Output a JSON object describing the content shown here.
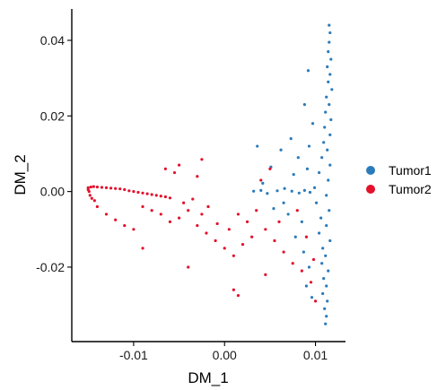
{
  "chart_data": {
    "type": "scatter",
    "title": "",
    "xlabel": "DM_1",
    "ylabel": "DM_2",
    "xlim": [
      -0.0168,
      0.0133
    ],
    "ylim": [
      -0.0397,
      0.0483
    ],
    "x_ticks": [
      {
        "value": -0.01,
        "label": "-0.01"
      },
      {
        "value": 0.0,
        "label": "0.00"
      },
      {
        "value": 0.01,
        "label": "0.01"
      }
    ],
    "y_ticks": [
      {
        "value": 0.04,
        "label": "0.04"
      },
      {
        "value": 0.02,
        "label": "0.02"
      },
      {
        "value": 0.0,
        "label": "0.00"
      },
      {
        "value": -0.02,
        "label": "-0.02"
      }
    ],
    "grid": false,
    "legend_position": "right",
    "series": [
      {
        "name": "Tumor1",
        "color": "#2b7bba",
        "points": [
          [
            0.0115,
            0.044
          ],
          [
            0.0116,
            0.042
          ],
          [
            0.0115,
            0.0395
          ],
          [
            0.0114,
            0.037
          ],
          [
            0.0117,
            0.035
          ],
          [
            0.0113,
            0.033
          ],
          [
            0.0116,
            0.031
          ],
          [
            0.0114,
            0.029
          ],
          [
            0.0118,
            0.027
          ],
          [
            0.0112,
            0.025
          ],
          [
            0.0115,
            0.023
          ],
          [
            0.0111,
            0.021
          ],
          [
            0.0117,
            0.019
          ],
          [
            0.011,
            0.017
          ],
          [
            0.0116,
            0.015
          ],
          [
            0.0109,
            0.013
          ],
          [
            0.0113,
            0.011
          ],
          [
            0.0107,
            0.009
          ],
          [
            0.0116,
            0.007
          ],
          [
            0.0104,
            0.005
          ],
          [
            0.0114,
            0.003
          ],
          [
            0.0099,
            0.001
          ],
          [
            0.0112,
            -0.001
          ],
          [
            0.0101,
            -0.003
          ],
          [
            0.0115,
            -0.005
          ],
          [
            0.0106,
            -0.007
          ],
          [
            0.0112,
            -0.009
          ],
          [
            0.0104,
            -0.011
          ],
          [
            0.0116,
            -0.013
          ],
          [
            0.0108,
            -0.015
          ],
          [
            0.0111,
            -0.017
          ],
          [
            0.0107,
            -0.019
          ],
          [
            0.0114,
            -0.021
          ],
          [
            0.0109,
            -0.023
          ],
          [
            0.0112,
            -0.025
          ],
          [
            0.0108,
            -0.027
          ],
          [
            0.0113,
            -0.029
          ],
          [
            0.011,
            -0.031
          ],
          [
            0.0112,
            -0.033
          ],
          [
            0.0111,
            -0.035
          ],
          [
            0.0092,
            0.032
          ],
          [
            0.0088,
            0.023
          ],
          [
            0.0097,
            0.018
          ],
          [
            0.0093,
            0.012
          ],
          [
            0.0081,
            0.009
          ],
          [
            0.0073,
            0.014
          ],
          [
            0.0062,
            0.011
          ],
          [
            0.0051,
            0.0065
          ],
          [
            0.0042,
            0.0022
          ],
          [
            0.0036,
            0.012
          ],
          [
            0.0058,
            0.0002
          ],
          [
            0.0066,
            0.0008
          ],
          [
            0.0074,
            0.0001
          ],
          [
            0.0082,
            -0.0004
          ],
          [
            0.0088,
            0.0003
          ],
          [
            0.0094,
            -0.0002
          ],
          [
            0.0047,
            -0.0005
          ],
          [
            0.004,
            0.0003
          ],
          [
            0.0032,
            0.0001
          ],
          [
            0.0054,
            -0.0045
          ],
          [
            0.007,
            -0.006
          ],
          [
            0.0078,
            -0.012
          ],
          [
            0.0087,
            -0.016
          ],
          [
            0.0093,
            -0.02
          ],
          [
            0.009,
            -0.025
          ],
          [
            0.0096,
            -0.028
          ],
          [
            0.0085,
            -0.008
          ],
          [
            0.0065,
            -0.003
          ],
          [
            0.0076,
            0.0045
          ],
          [
            0.0091,
            0.006
          ]
        ]
      },
      {
        "name": "Tumor2",
        "color": "#e3112c",
        "points": [
          [
            -0.015,
            0.001
          ],
          [
            -0.0149,
            0.0
          ],
          [
            -0.0148,
            -0.001
          ],
          [
            -0.0146,
            -0.0018
          ],
          [
            -0.0143,
            -0.0024
          ],
          [
            -0.015,
            0.0005
          ],
          [
            -0.0147,
            0.0012
          ],
          [
            -0.0144,
            0.0013
          ],
          [
            -0.014,
            0.0012
          ],
          [
            -0.0135,
            0.0011
          ],
          [
            -0.013,
            0.001
          ],
          [
            -0.0125,
            0.0009
          ],
          [
            -0.012,
            0.0008
          ],
          [
            -0.0115,
            0.0007
          ],
          [
            -0.011,
            0.0005
          ],
          [
            -0.0105,
            0.0002
          ],
          [
            -0.01,
            0.0
          ],
          [
            -0.0095,
            -0.0002
          ],
          [
            -0.009,
            -0.0004
          ],
          [
            -0.0085,
            -0.0006
          ],
          [
            -0.008,
            -0.0008
          ],
          [
            -0.0075,
            -0.001
          ],
          [
            -0.007,
            -0.0012
          ],
          [
            -0.0065,
            -0.0014
          ],
          [
            -0.006,
            -0.0017
          ],
          [
            -0.014,
            -0.004
          ],
          [
            -0.013,
            -0.006
          ],
          [
            -0.012,
            -0.0075
          ],
          [
            -0.011,
            -0.009
          ],
          [
            -0.01,
            -0.01
          ],
          [
            -0.009,
            -0.004
          ],
          [
            -0.008,
            -0.005
          ],
          [
            -0.007,
            -0.006
          ],
          [
            -0.006,
            -0.008
          ],
          [
            -0.005,
            -0.007
          ],
          [
            -0.004,
            -0.005
          ],
          [
            -0.003,
            -0.009
          ],
          [
            -0.002,
            -0.011
          ],
          [
            -0.001,
            -0.013
          ],
          [
            0.0,
            -0.015
          ],
          [
            0.001,
            -0.017
          ],
          [
            -0.0008,
            -0.0085
          ],
          [
            -0.0018,
            -0.004
          ],
          [
            -0.0025,
            -0.006
          ],
          [
            -0.0045,
            -0.003
          ],
          [
            -0.0055,
            0.005
          ],
          [
            -0.0065,
            0.006
          ],
          [
            -0.005,
            0.007
          ],
          [
            -0.0035,
            -0.002
          ],
          [
            -0.003,
            0.004
          ],
          [
            0.0015,
            -0.006
          ],
          [
            0.0025,
            -0.008
          ],
          [
            0.0035,
            -0.005
          ],
          [
            0.0045,
            -0.01
          ],
          [
            0.0055,
            -0.013
          ],
          [
            0.0065,
            -0.016
          ],
          [
            0.0075,
            -0.019
          ],
          [
            0.0085,
            -0.021
          ],
          [
            0.0095,
            -0.024
          ],
          [
            0.01,
            -0.029
          ],
          [
            0.004,
            0.003
          ],
          [
            0.005,
            0.006
          ],
          [
            0.003,
            -0.012
          ],
          [
            0.002,
            -0.014
          ],
          [
            0.006,
            -0.008
          ],
          [
            0.008,
            -0.005
          ],
          [
            0.009,
            -0.012
          ],
          [
            0.0098,
            -0.018
          ],
          [
            0.001,
            -0.026
          ],
          [
            0.0015,
            -0.0275
          ],
          [
            -0.004,
            -0.02
          ],
          [
            -0.009,
            -0.015
          ],
          [
            0.0005,
            -0.01
          ],
          [
            -0.0025,
            0.0085
          ],
          [
            0.0045,
            -0.022
          ]
        ]
      }
    ]
  }
}
